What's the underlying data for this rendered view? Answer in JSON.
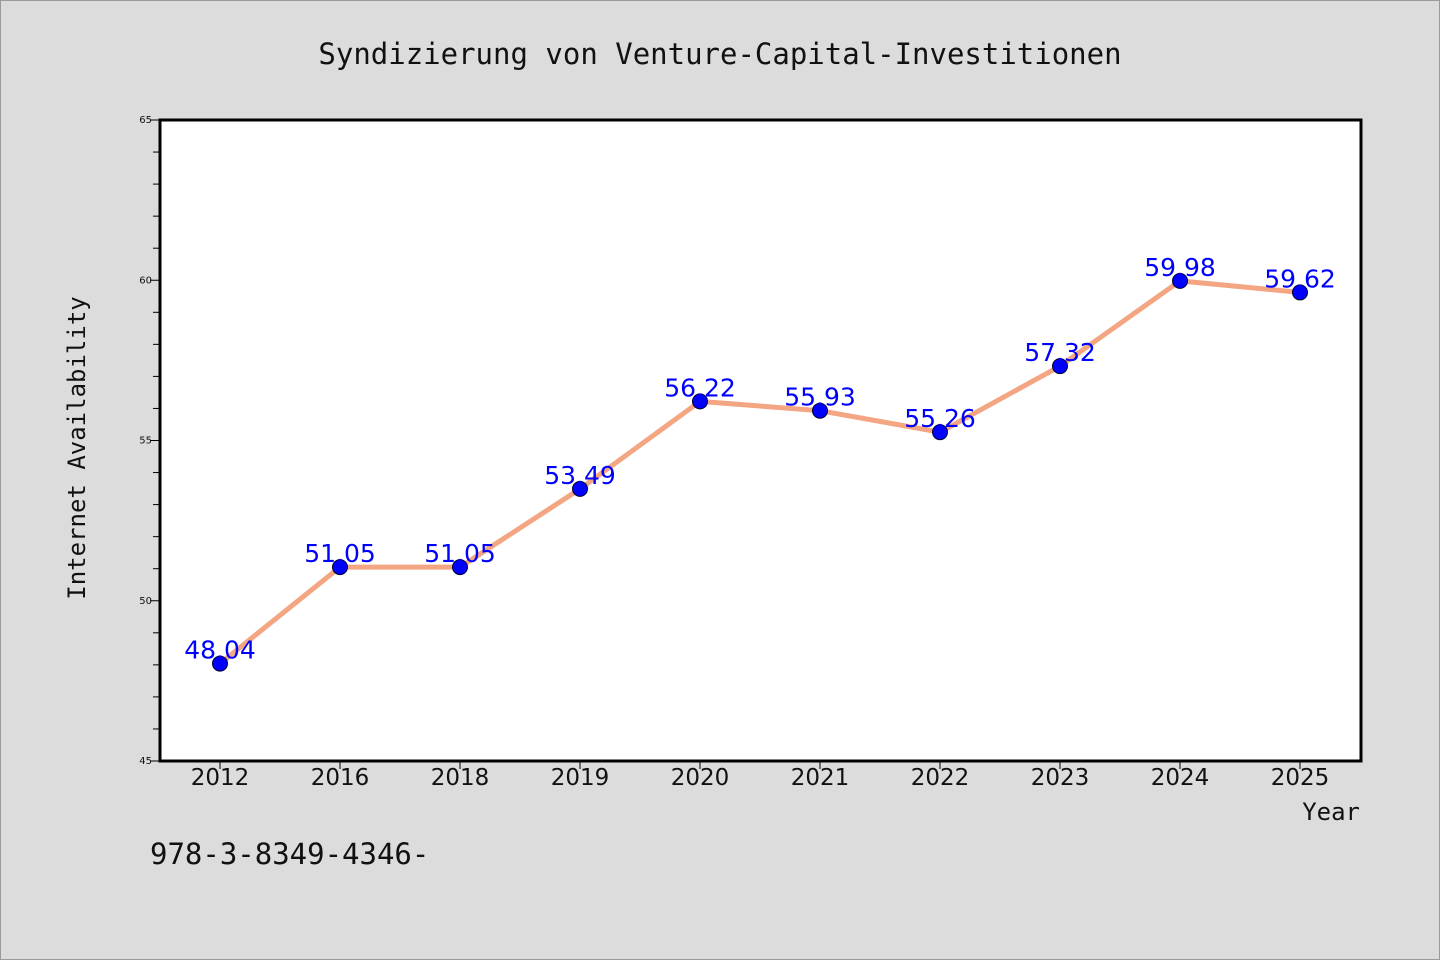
{
  "chart_data": {
    "type": "line",
    "title": "Syndizierung von Venture-Capital-Investitionen",
    "xlabel": "Year",
    "ylabel": "Internet Availability",
    "categories": [
      "2012",
      "2016",
      "2018",
      "2019",
      "2020",
      "2021",
      "2022",
      "2023",
      "2024",
      "2025"
    ],
    "series": [
      {
        "values": [
          48.04,
          51.05,
          51.05,
          53.49,
          56.22,
          55.93,
          55.26,
          57.32,
          59.98,
          59.62
        ],
        "data_labels": [
          "48.04",
          "51.05",
          "51.05",
          "53.49",
          "56.22",
          "55.93",
          "55.26",
          "57.32",
          "59.98",
          "59.62"
        ]
      }
    ],
    "ylim": [
      45,
      65
    ],
    "yticks": [
      "45",
      "50",
      "55",
      "60",
      "65"
    ],
    "grid": false,
    "legend": "none",
    "colors": {
      "line": "#f4a582",
      "marker": "#0000ff",
      "data_label": "#0000ff",
      "background": "#dcdcdc",
      "plot_background": "#ffffff"
    }
  },
  "footnote": "978-3-8349-4346-"
}
